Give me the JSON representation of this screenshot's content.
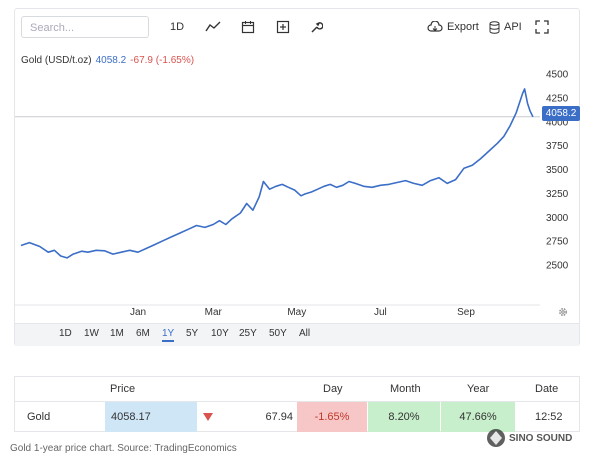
{
  "toolbar": {
    "search_placeholder": "Search...",
    "period_label": "1D",
    "export_label": "Export",
    "api_label": "API",
    "icons": [
      "line-chart-icon",
      "calendar-icon",
      "plus-square-icon",
      "wrench-icon",
      "cloud-download-icon",
      "database-icon",
      "expand-icon"
    ]
  },
  "quote_line": {
    "symbol": "Gold (USD/t.oz)",
    "price": "4058.2",
    "change": "-67.9 (-1.65%)"
  },
  "last_price_tag": "4058.2",
  "range_buttons": [
    "1D",
    "1W",
    "1M",
    "6M",
    "1Y",
    "5Y",
    "10Y",
    "25Y",
    "50Y",
    "All"
  ],
  "active_range": "1Y",
  "chart_data": {
    "type": "line",
    "title": "Gold (USD/t.oz)",
    "xlabel": "",
    "ylabel": "",
    "ylim": [
      2150,
      4600
    ],
    "y_ticks": [
      2500,
      2750,
      3000,
      3250,
      3500,
      3750,
      4000,
      4250,
      4500
    ],
    "x_ticks": [
      {
        "label": "Jan",
        "x": 2.8
      },
      {
        "label": "Mar",
        "x": 4.6
      },
      {
        "label": "May",
        "x": 6.6
      },
      {
        "label": "Jul",
        "x": 8.6
      },
      {
        "label": "Sep",
        "x": 10.65
      }
    ],
    "x_range": [
      0,
      12.3
    ],
    "reference_line": 4058.2,
    "grid": false,
    "series": [
      {
        "color": "#3b6ec7",
        "points": [
          [
            0.0,
            2710
          ],
          [
            0.2,
            2740
          ],
          [
            0.45,
            2700
          ],
          [
            0.65,
            2640
          ],
          [
            0.8,
            2660
          ],
          [
            0.95,
            2600
          ],
          [
            1.1,
            2580
          ],
          [
            1.25,
            2620
          ],
          [
            1.45,
            2650
          ],
          [
            1.6,
            2640
          ],
          [
            1.8,
            2660
          ],
          [
            2.0,
            2655
          ],
          [
            2.2,
            2620
          ],
          [
            2.4,
            2640
          ],
          [
            2.6,
            2660
          ],
          [
            2.8,
            2640
          ],
          [
            3.0,
            2680
          ],
          [
            3.2,
            2720
          ],
          [
            3.4,
            2760
          ],
          [
            3.6,
            2800
          ],
          [
            3.8,
            2840
          ],
          [
            4.0,
            2880
          ],
          [
            4.2,
            2920
          ],
          [
            4.4,
            2900
          ],
          [
            4.6,
            2930
          ],
          [
            4.75,
            2970
          ],
          [
            4.9,
            2930
          ],
          [
            5.05,
            2990
          ],
          [
            5.25,
            3050
          ],
          [
            5.4,
            3150
          ],
          [
            5.55,
            3080
          ],
          [
            5.7,
            3220
          ],
          [
            5.8,
            3380
          ],
          [
            5.95,
            3300
          ],
          [
            6.1,
            3330
          ],
          [
            6.25,
            3350
          ],
          [
            6.4,
            3320
          ],
          [
            6.55,
            3290
          ],
          [
            6.7,
            3230
          ],
          [
            6.8,
            3250
          ],
          [
            6.95,
            3270
          ],
          [
            7.1,
            3300
          ],
          [
            7.25,
            3330
          ],
          [
            7.4,
            3350
          ],
          [
            7.55,
            3320
          ],
          [
            7.7,
            3340
          ],
          [
            7.85,
            3380
          ],
          [
            8.0,
            3360
          ],
          [
            8.2,
            3330
          ],
          [
            8.4,
            3320
          ],
          [
            8.6,
            3340
          ],
          [
            8.8,
            3350
          ],
          [
            9.0,
            3370
          ],
          [
            9.2,
            3390
          ],
          [
            9.4,
            3360
          ],
          [
            9.6,
            3340
          ],
          [
            9.8,
            3390
          ],
          [
            10.0,
            3420
          ],
          [
            10.2,
            3360
          ],
          [
            10.4,
            3400
          ],
          [
            10.6,
            3520
          ],
          [
            10.8,
            3550
          ],
          [
            11.0,
            3620
          ],
          [
            11.2,
            3700
          ],
          [
            11.4,
            3780
          ],
          [
            11.55,
            3850
          ],
          [
            11.7,
            3960
          ],
          [
            11.85,
            4100
          ],
          [
            12.0,
            4300
          ],
          [
            12.05,
            4350
          ],
          [
            12.12,
            4200
          ],
          [
            12.18,
            4120
          ],
          [
            12.25,
            4058
          ]
        ]
      }
    ]
  },
  "quote_table": {
    "headers": {
      "price": "Price",
      "day": "Day",
      "month": "Month",
      "year": "Year",
      "date": "Date"
    },
    "row": {
      "name": "Gold",
      "price": "4058.17",
      "change": "67.94",
      "day_pct": "-1.65%",
      "month_pct": "8.20%",
      "year_pct": "47.66%",
      "date": "12:52"
    },
    "colors": {
      "price_bg": "#cfe6f7",
      "day_bg": "#f7c7c7",
      "month_bg": "#c8efcc",
      "year_bg": "#c8efcc",
      "down": "#d9534f"
    }
  },
  "caption": "Gold 1-year price chart. Source: TradingEconomics",
  "watermark": "SINO SOUND"
}
